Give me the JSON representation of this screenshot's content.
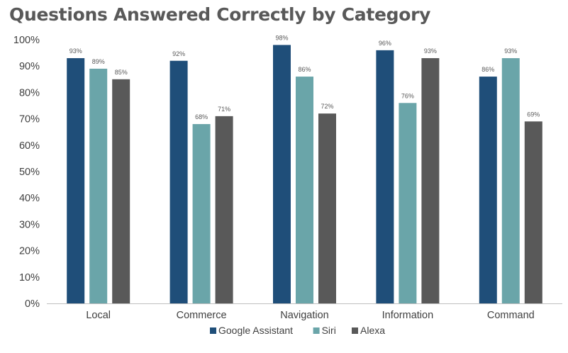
{
  "chart_data": {
    "type": "bar",
    "title": "Questions Answered Correctly by Category",
    "categories": [
      "Local",
      "Commerce",
      "Navigation",
      "Information",
      "Command"
    ],
    "series": [
      {
        "name": "Google Assistant",
        "color": "#1f4e79",
        "values": [
          93,
          92,
          98,
          96,
          86
        ],
        "labels": [
          "93%",
          "92%",
          "98%",
          "96%",
          "86%"
        ]
      },
      {
        "name": "Siri",
        "color": "#6aa5a9",
        "values": [
          89,
          68,
          86,
          76,
          93
        ],
        "labels": [
          "89%",
          "68%",
          "86%",
          "76%",
          "93%"
        ]
      },
      {
        "name": "Alexa",
        "color": "#595959",
        "values": [
          85,
          71,
          72,
          93,
          69
        ],
        "labels": [
          "85%",
          "71%",
          "72%",
          "93%",
          "69%"
        ]
      }
    ],
    "ylim": [
      0,
      100
    ],
    "yticks": [
      0,
      10,
      20,
      30,
      40,
      50,
      60,
      70,
      80,
      90,
      100
    ],
    "ytick_labels": [
      "0%",
      "10%",
      "20%",
      "30%",
      "40%",
      "50%",
      "60%",
      "70%",
      "80%",
      "90%",
      "100%"
    ],
    "grid": false,
    "legend_position": "bottom"
  }
}
